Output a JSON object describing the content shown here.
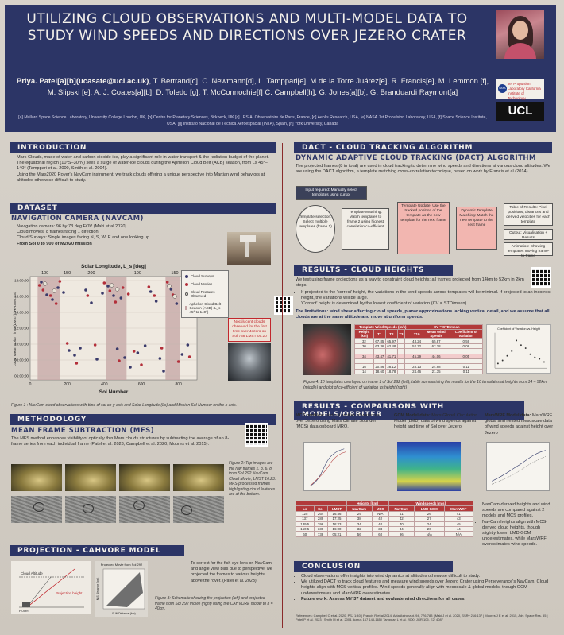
{
  "header": {
    "title": "UTILIZING CLOUD OBSERVATIONS AND MULTI-MODEL DATA TO STUDY WIND SPEEDS AND DIRECTIONS OVER JEZERO CRATER",
    "authors_lead": "Priya. Patel[a][b](ucasate@ucl.ac.uk)",
    "authors_rest": ", T. Bertrand[c], C. Newmann[d], L. Tamppari[e], M de la Torre Juárez[e], R. Francis[e], M. Lemmon [f], M. Slipski [e], A. J. Coates[a][b], D. Toledo [g], T. McConnochie[f] C. Campbell[h], G. Jones[a][b], G. Branduardi Raymont[a]",
    "affiliations": "[a] Mullard Space Science Laboratory, University College London, UK, [b] Centre for Planetary Sciences, Birkbeck, UK [c] LESIA, Observatoire de Paris, France, [d] Aeolis Research, USA, [e] NASA Jet Propulsion Laboratory, USA, [f] Space Science Institute, USA, [g] Instituto Nacional de Técnica Aeroespacial (INTA), Spain, [h] York University, Canada",
    "logo_jpl": "Jet Propulsion Laboratory California Institute of Technology",
    "logo_nasa": "NASA",
    "logo_ucl": "UCL"
  },
  "introduction": {
    "heading": "INTRODUCTION",
    "bullets": [
      "Mars Clouds, made of water and carbon dioxide ice, play a significant role in water transport & the radiation budget of the planet. The equatorial region (10°S–30°N) sees a surge of water-ice clouds during the Aphelion Cloud Belt (ACB) season, from Ls 45°–140° (Tamppari et al. 2000, Smith et al. 2004).",
      "Using the Mars2020 Rover's NavCam instrument, we track clouds offering a unique perspective into Martian wind behaviors at altitudes otherwise difficult to study."
    ]
  },
  "dataset": {
    "heading": "DATASET",
    "sub": "NAVIGATION CAMERA (NAVCAM)",
    "bullets": [
      "Navigation camera: 96 by 73 deg FOV (Maki et al 2020)",
      "Cloud movies: 8 frames facing 1 direction",
      "Cloud Surveys: Single images facing N, S, W, E and one looking up",
      "From Sol 0 to 900 of M2020 mission"
    ],
    "callout": "Noctilucent clouds observed for the first time over Jezero on Sol 738 LMST 05:20",
    "caption": "Figure 1 : NavCam cloud observations with time of sol on y-axis and Solar Longitude (Ls) and Mission Sol Number on the x-axis."
  },
  "chart_data": {
    "type": "scatter",
    "title": "",
    "top_axis_label": "Solar Longitude, L_s [deg]",
    "top_ticks": [
      "100",
      "150",
      "200",
      "100",
      "150"
    ],
    "xlabel": "Sol Number",
    "ylabel": "Local Mean Solar Time (LMST) [HH:MM:SS]",
    "x_ticks": [
      0,
      200,
      400,
      600,
      800
    ],
    "xlim": [
      0,
      900
    ],
    "y_ticks": [
      "06:00:00",
      "08:00:00",
      "10:00:00",
      "12:00:00",
      "14:00:00",
      "16:00:00",
      "18:00:00"
    ],
    "ylim": [
      5.5,
      18.5
    ],
    "acb_bands": [
      [
        40,
        160
      ],
      [
        410,
        520
      ],
      [
        730,
        810
      ]
    ],
    "legend": {
      "surveys": "Cloud Surveys",
      "movies": "Cloud Movies",
      "features": "Cloud Features Observed",
      "acb": "Aphelion Cloud Belt Season (ACB) (L_s 45° to 140°)"
    },
    "series": [
      {
        "name": "Cloud Surveys",
        "color": "#3a3a6a",
        "points": [
          [
            60,
            17.8
          ],
          [
            90,
            16.2
          ],
          [
            120,
            15.6
          ],
          [
            150,
            17.1
          ],
          [
            180,
            16.5
          ],
          [
            210,
            9.2
          ],
          [
            240,
            8.6
          ],
          [
            270,
            9.5
          ],
          [
            300,
            16.8
          ],
          [
            330,
            15.2
          ],
          [
            360,
            8.1
          ],
          [
            390,
            16.4
          ],
          [
            420,
            17.3
          ],
          [
            450,
            16.1
          ],
          [
            470,
            9.4
          ],
          [
            490,
            15.8
          ],
          [
            510,
            8.3
          ],
          [
            540,
            7.1
          ],
          [
            580,
            8.9
          ],
          [
            620,
            9.8
          ],
          [
            650,
            16.6
          ],
          [
            680,
            15.4
          ],
          [
            700,
            8.2
          ],
          [
            720,
            6.6
          ],
          [
            760,
            16.9
          ],
          [
            790,
            15.1
          ],
          [
            820,
            8.7
          ],
          [
            850,
            9.9
          ],
          [
            870,
            17.4
          ]
        ]
      },
      {
        "name": "Cloud Movies",
        "color": "#b32f3a",
        "points": [
          [
            50,
            17.4
          ],
          [
            70,
            16.8
          ],
          [
            110,
            16.1
          ],
          [
            140,
            15.1
          ],
          [
            160,
            17.9
          ],
          [
            200,
            10.1
          ],
          [
            250,
            7.6
          ],
          [
            310,
            16.1
          ],
          [
            350,
            9.9
          ],
          [
            400,
            17.7
          ],
          [
            430,
            16.7
          ],
          [
            460,
            15.3
          ],
          [
            480,
            7.9
          ],
          [
            500,
            17.1
          ],
          [
            530,
            16.3
          ],
          [
            560,
            9.1
          ],
          [
            600,
            7.4
          ],
          [
            640,
            17.2
          ],
          [
            670,
            16.1
          ],
          [
            710,
            9.5
          ],
          [
            740,
            17.8
          ],
          [
            770,
            16.2
          ],
          [
            800,
            7.8
          ],
          [
            830,
            16.5
          ],
          [
            860,
            8.4
          ]
        ]
      },
      {
        "name": "Cloud Features Observed",
        "color": "#e8e2d6",
        "points": [
          [
            80,
            17.6
          ],
          [
            130,
            16.7
          ],
          [
            440,
            17.4
          ],
          [
            470,
            16.9
          ],
          [
            750,
            17.3
          ],
          [
            780,
            16.0
          ]
        ]
      }
    ]
  },
  "methodology": {
    "heading": "METHODOLOGY",
    "sub": "MEAN FRAME SUBTRACTION (MFS)",
    "text": "The MFS method enhances visibility of optically thin Mars clouds structures by subtracting the average of an 8-frame series from each individual frame (Patel et al. 2023, Campbell et al. 2020, Moores et al. 2015).",
    "caption": "Figure 2: Top images are the raw frames 1, 3, 6, 8 from Sol 292 NavCam Cloud Movie, LMST 16:23. MFS-processed frames highlighting cloud features are at the bottom."
  },
  "projection": {
    "heading": "PROJECTION - CAHVORE MODEL",
    "diag_cloud": "Cloud Altitude",
    "diag_rover": "Rover",
    "diag_proj": "Projection height",
    "img_title": "Projected Movie from Sol 292",
    "img_xlabel": "E-W Distance (km)",
    "img_ylabel": "N-S Distance (km)",
    "text": "To correct for the fish eye lens on NavCam and angle view bias due to perspective, we projected the frames to various heights above the rover. (Patel et al. 2023)",
    "caption": "Figure 3: Schematic showing the projection (left) and projected frame from Sol 292 movie (right) using the CAHVORE model to h = 40km."
  },
  "dact": {
    "heading": "DACT - CLOUD TRACKING ALGORITHM",
    "sub": "DYNAMIC ADAPTIVE CLOUD TRACKING (DACT) ALGORITHM",
    "text": "The projected frames (8 in total) are used in cloud tracking to determine wind speeds and directions at various cloud altitudes. We are using the DACT algorithm, a template matching cross-correlation technique, based on work by Francis et al (2014).",
    "flow_input": "Input required: Manually select templates using cursor",
    "flow_select": "Template selection: Select multiple templates (frame 1)",
    "flow_match": "Template Matching: Match templates to frame 2 using highest correlation co-efficient",
    "flow_update": "Template Update: Use the tracked position of the template as the new template for the next frame",
    "flow_dynamic": "Dynamic Template Matching: Match the new template to the next frame",
    "flow_table": "Table of Results: Pixel positions, distances and derived velocities for each template",
    "flow_output": "Output: Visualisation + Results",
    "flow_anim": "Animation: Showing templates moving frame-to-frame"
  },
  "heights": {
    "heading": "RESULTS - CLOUD HEIGHTS",
    "intro": "We test using frame projections as a way to constraint cloud heights: all frames projected from 14km to 52km in 2km steps.",
    "bullets": [
      "If projected to the 'correct' height, the variations in the wind speeds across templates will be minimal. If projected to an incorrect height, the variations will be large.",
      "'Correct' height is determined by the lowest coefficient of variation (CV = STD/mean)"
    ],
    "limitation": "The limitations: wind shear affecting cloud speeds, planar approximations lacking vertical detail, and we assume that all clouds are at the same altitude and move at uniform speeds.",
    "table_title": "Template Wind Speeds (m/s)",
    "table_units": "CV = STD/mean",
    "table_cols": [
      "Height (km)",
      "T1",
      "T2",
      "T3",
      "...",
      "T10",
      "Mean Wind Speeds",
      "Coefficient of variation"
    ],
    "table_rows": [
      [
        "32",
        "67.85",
        "65.97",
        "",
        "",
        "43.24",
        "65.87",
        "0.59"
      ],
      [
        "30",
        "63.36",
        "62.48",
        "",
        "",
        "52.72",
        "62.18",
        "0.08"
      ],
      [
        "",
        "",
        "",
        "",
        "",
        "",
        "",
        ""
      ],
      [
        "34",
        "43.47",
        "41.71",
        "",
        "",
        "45.29",
        "44.06",
        "0.05"
      ],
      [
        "",
        "",
        "",
        "",
        "",
        "",
        "",
        ""
      ],
      [
        "16",
        "20.86",
        "28.12",
        "",
        "",
        "28.13",
        "24.98",
        "0.11"
      ],
      [
        "14",
        "18.60",
        "18.78",
        "",
        "",
        "24.46",
        "21.35",
        "0.11"
      ]
    ],
    "scatter_title": "Coefficient of Variation vs. Height",
    "caption": "Figure 4: 10 templates overlayed on frame 1 of Sol 292 (left), table summarising the results for the 10 templates at heights from 14 – 52km (middle) and plot of co-efficient of variation vs height (right)"
  },
  "comparisons": {
    "heading": "RESULTS - COMPARISONS WITH MODELS/ORBITER",
    "mcs_title": "MCS profiles:",
    "mcs_text": "Vertical profiles of water ice over Jezero using Mars Climate Sounder (MCS) data onboard MRO.",
    "gcm_title": "GCM Model data:",
    "gcm_text": "Mars Global Circulation Model (LMD) data of wind speeds against height and time of Sol over Jezero",
    "wrf_title": "MarsWRF Model data:",
    "wrf_text": "MarsWRF global and nested mesoscale data of wind speeds against height over Jezero",
    "table_group1": "Heights [km]",
    "table_group2": "Windspeeds [m/s]",
    "table_cols": [
      "Ls",
      "Sol",
      "LMST",
      "NavCam",
      "MCS",
      "NavCam",
      "LMD GCM",
      "MarsWRF"
    ],
    "table_rows": [
      [
        "125",
        "264",
        "16:56",
        "29",
        "N/A",
        "41",
        "26",
        "41"
      ],
      [
        "137",
        "289",
        "17:25",
        "38",
        "42",
        "42",
        "27",
        "43"
      ],
      [
        "139.5",
        "296",
        "16:23",
        "34",
        "40",
        "40",
        "24",
        "45"
      ],
      [
        "150.5",
        "330",
        "16:00",
        "32",
        "34",
        "34",
        "26",
        "44"
      ],
      [
        "60",
        "738",
        "05:21",
        "56",
        "60",
        "96",
        "N/A",
        "N/A"
      ]
    ],
    "findings": [
      "NavCam-derived heights and wind speeds are compared against 2 models and MCS profiles.",
      "NavCam heights align with MCS-derived cloud heights, though slightly lower. LMD GCM underestimates, while MarsWRF overestimates wind speeds."
    ]
  },
  "conclusion": {
    "heading": "CONCLUSION",
    "bullets": [
      "Cloud observations offer insights into wind dynamics at altitudes otherwise difficult to study.",
      "We utilized DACT to track cloud features and measure wind speeds over Jezero Crater using Perseverance's NavCam. Cloud heights align with MCS vertical profiles. Wind speeds generally align with mesoscale & global models, though GCM underestimates and MarsWRF overestimates.",
      "Future work: Assess MY 37 dataset and evaluate wind directions for all cases."
    ],
    "references": "References: Campbell C et al. 2020, PSJ 1:40 | Francis R et al 2014, Acta Astronaut. 94, 776-783 | Maki J et al. 2020, SSRv 216:137 | Moores J E et al. 2015, Adv. Space Res. 55 | Patel P et al. 2023 | Smith M et al. 2004, Icarus 167 148-165 | Tamppari L et al. 2000, JGR 105, E2, 4087"
  },
  "colors": {
    "navy": "#2c3566",
    "accent": "#b23a3a",
    "band": "#c4a4a4"
  }
}
